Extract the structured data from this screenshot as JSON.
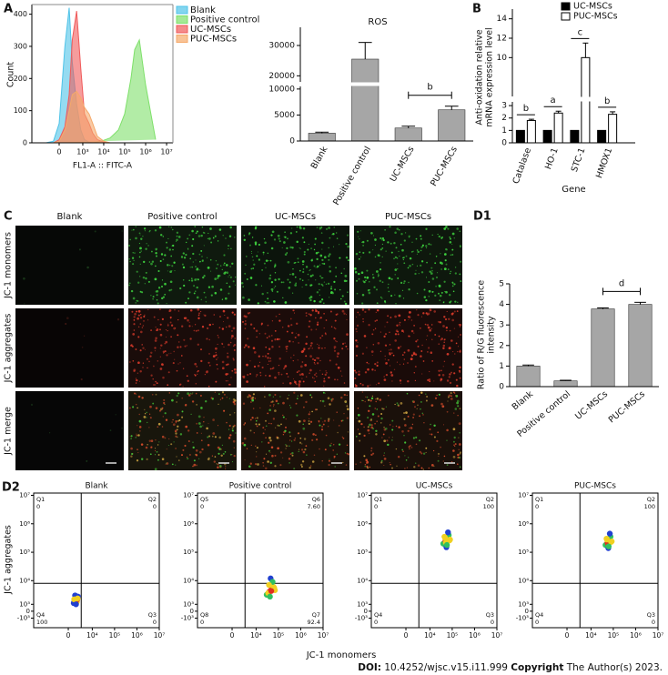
{
  "panel_labels": [
    "A",
    "B",
    "C",
    "D1",
    "D2"
  ],
  "chart_data": [
    {
      "type": "area",
      "xlabel": "FL1-A :: FITC-A",
      "ylabel": "Count",
      "xscale": "asinh",
      "x": [
        -300,
        -100,
        0,
        100,
        200,
        300,
        500,
        800,
        1200,
        2000,
        3000,
        5000,
        10000,
        20000,
        50000,
        100000,
        200000,
        300000,
        500000,
        1000000,
        3000000
      ],
      "series": [
        {
          "name": "Blank",
          "color": "#4fc3e8",
          "values": [
            0,
            5,
            60,
            300,
            420,
            250,
            120,
            40,
            10,
            2,
            0,
            0,
            0,
            0,
            0,
            0,
            0,
            0,
            0,
            0,
            0
          ]
        },
        {
          "name": "Positive control",
          "color": "#7ee06a",
          "values": [
            0,
            0,
            0,
            0,
            0,
            0,
            0,
            0,
            0,
            0,
            0,
            2,
            8,
            15,
            40,
            90,
            200,
            290,
            320,
            180,
            10
          ]
        },
        {
          "name": "UC-MSCs",
          "color": "#f05a5a",
          "values": [
            0,
            0,
            10,
            50,
            150,
            320,
            410,
            230,
            90,
            60,
            30,
            10,
            2,
            0,
            0,
            0,
            0,
            0,
            0,
            0,
            0
          ]
        },
        {
          "name": "PUC-MSCs",
          "color": "#f5a96a",
          "values": [
            0,
            0,
            5,
            40,
            100,
            150,
            160,
            140,
            110,
            90,
            60,
            20,
            5,
            0,
            0,
            0,
            0,
            0,
            0,
            0,
            0
          ]
        }
      ],
      "xlim": [
        -1500,
        20000000
      ],
      "xticks": [
        0,
        {
          "value": 1000,
          "label": "10³"
        },
        {
          "value": 10000,
          "label": "10⁴"
        },
        {
          "value": 100000,
          "label": "10⁵"
        },
        {
          "value": 1000000,
          "label": "10⁶"
        },
        {
          "value": 10000000,
          "label": "10⁷"
        }
      ],
      "ylim": [
        0,
        430
      ],
      "yticks": [
        0,
        100,
        200,
        300,
        400
      ],
      "legend": "right"
    },
    {
      "type": "bar",
      "title": "ROS",
      "categories": [
        "Blank",
        "Positive control",
        "UC-MSCs",
        "PUC-MSCs"
      ],
      "values": [
        1500,
        25500,
        2500,
        6000
      ],
      "errors": [
        200,
        5500,
        350,
        700
      ],
      "color": "#a6a6a6",
      "ylim": [
        0,
        36000
      ],
      "ybreak": [
        10500,
        18000
      ],
      "yticks": [
        0,
        5000,
        10000,
        20000,
        30000
      ],
      "annotations": [
        {
          "text": "b",
          "between": [
            2,
            3
          ]
        }
      ]
    },
    {
      "type": "grouped-bar",
      "categories": [
        "Catalase",
        "HO-1",
        "STC-1",
        "HMOX1"
      ],
      "ylabel": [
        "Anti-oxidation relative",
        "mRNA expression level"
      ],
      "xlabel": "Gene",
      "series": [
        {
          "name": "UC-MSCs",
          "color": "#000000",
          "values": [
            1,
            1,
            1,
            1
          ]
        },
        {
          "name": "PUC-MSCs",
          "color": "#ffffff",
          "values": [
            1.8,
            2.4,
            10,
            2.3
          ],
          "errors": [
            0.1,
            0.15,
            1.5,
            0.2
          ]
        }
      ],
      "letters": [
        "b",
        "a",
        "c",
        "b"
      ],
      "ylim": [
        0,
        15
      ],
      "ybreak": [
        3.3,
        6
      ],
      "yticks": [
        0,
        1,
        2,
        3,
        10,
        12,
        14
      ],
      "legend": "top-right"
    },
    {
      "type": "bar",
      "categories": [
        "Blank",
        "Positive control",
        "UC-MSCs",
        "PUC-MSCs"
      ],
      "ylabel": [
        "Ratio of R/G fluorescence",
        "intensity"
      ],
      "values": [
        1.0,
        0.28,
        3.78,
        4.0
      ],
      "errors": [
        0.05,
        0.03,
        0.05,
        0.1
      ],
      "color": "#a6a6a6",
      "ylim": [
        0,
        5
      ],
      "yticks": [
        0,
        1,
        2,
        3,
        4,
        5
      ],
      "annotations": [
        {
          "text": "d",
          "between": [
            2,
            3
          ]
        }
      ]
    },
    {
      "type": "scatter",
      "title": "Blank",
      "ylabel": "JC-1 aggregates",
      "xscale": "asinh",
      "yscale": "asinh",
      "x": [
        1200,
        1500,
        1800,
        1000,
        2000,
        1400,
        1700,
        1300,
        1600,
        1100,
        1900,
        1500
      ],
      "y": [
        1500,
        2000,
        1800,
        1200,
        2500,
        2200,
        1400,
        2800,
        1700,
        1900,
        2100,
        1000
      ],
      "gate": {
        "x": 3000,
        "y": 8000
      },
      "quadrants": [
        {
          "name": "Q1",
          "value": "0"
        },
        {
          "name": "Q2",
          "value": "0"
        },
        {
          "name": "Q3",
          "value": "0"
        },
        {
          "name": "Q4",
          "value": "100"
        }
      ],
      "xlim": [
        -30000,
        10000000
      ],
      "ylim": [
        -3000,
        12000000
      ],
      "xticks": [
        0,
        {
          "value": 10000,
          "label": "10⁴"
        },
        {
          "value": 100000,
          "label": "10⁵"
        },
        {
          "value": 1000000,
          "label": "10⁶"
        },
        {
          "value": 10000000,
          "label": "10⁷"
        }
      ],
      "yticks": [
        {
          "value": -1000,
          "label": "-10³"
        },
        0,
        {
          "value": 1000,
          "label": "10³"
        },
        {
          "value": 10000,
          "label": "10⁴"
        },
        {
          "value": 100000,
          "label": "10⁵"
        },
        {
          "value": 1000000,
          "label": "10⁶"
        },
        {
          "value": 10000000,
          "label": "10⁷"
        }
      ]
    },
    {
      "type": "scatter",
      "title": "Positive control",
      "xscale": "asinh",
      "yscale": "asinh",
      "x": [
        30000,
        50000,
        40000,
        60000,
        45000,
        35000,
        70000,
        55000,
        42000,
        38000,
        65000,
        48000
      ],
      "y": [
        3000,
        5000,
        4000,
        6000,
        12000,
        3500,
        4500,
        9000,
        2500,
        7000,
        5500,
        4200
      ],
      "gate": {
        "x": 3000,
        "y": 8000
      },
      "quadrants": [
        {
          "name": "Q5",
          "value": "0"
        },
        {
          "name": "Q6",
          "value": "7.60"
        },
        {
          "name": "Q7",
          "value": "92.4"
        },
        {
          "name": "Q8",
          "value": "0"
        }
      ],
      "xlim": [
        -30000,
        10000000
      ],
      "ylim": [
        -3000,
        12000000
      ],
      "xticks": [
        0,
        {
          "value": 10000,
          "label": "10⁴"
        },
        {
          "value": 100000,
          "label": "10⁵"
        },
        {
          "value": 1000000,
          "label": "10⁶"
        },
        {
          "value": 10000000,
          "label": "10⁷"
        }
      ],
      "yticks": [
        {
          "value": -1000,
          "label": "-10³"
        },
        0,
        {
          "value": 1000,
          "label": "10³"
        },
        {
          "value": 10000,
          "label": "10⁴"
        },
        {
          "value": 100000,
          "label": "10⁵"
        },
        {
          "value": 1000000,
          "label": "10⁶"
        },
        {
          "value": 10000000,
          "label": "10⁷"
        }
      ]
    },
    {
      "type": "scatter",
      "title": "UC-MSCs",
      "xscale": "asinh",
      "yscale": "asinh",
      "x": [
        40000,
        60000,
        50000,
        70000,
        55000,
        45000,
        80000,
        65000,
        52000,
        48000,
        75000,
        58000
      ],
      "y": [
        200000,
        300000,
        250000,
        400000,
        150000,
        350000,
        280000,
        500000,
        220000,
        320000,
        260000,
        180000
      ],
      "gate": {
        "x": 3000,
        "y": 8000
      },
      "quadrants": [
        {
          "name": "Q1",
          "value": "0"
        },
        {
          "name": "Q2",
          "value": "100"
        },
        {
          "name": "Q3",
          "value": "0"
        },
        {
          "name": "Q4",
          "value": "0"
        }
      ],
      "xlim": [
        -30000,
        10000000
      ],
      "ylim": [
        -3000,
        12000000
      ],
      "xticks": [
        0,
        {
          "value": 10000,
          "label": "10⁴"
        },
        {
          "value": 100000,
          "label": "10⁵"
        },
        {
          "value": 1000000,
          "label": "10⁶"
        },
        {
          "value": 10000000,
          "label": "10⁷"
        }
      ],
      "yticks": [
        {
          "value": -1000,
          "label": "-10³"
        },
        0,
        {
          "value": 1000,
          "label": "10³"
        },
        {
          "value": 10000,
          "label": "10⁴"
        },
        {
          "value": 100000,
          "label": "10⁵"
        },
        {
          "value": 1000000,
          "label": "10⁶"
        },
        {
          "value": 10000000,
          "label": "10⁷"
        }
      ]
    },
    {
      "type": "scatter",
      "title": "PUC-MSCs",
      "xscale": "asinh",
      "yscale": "asinh",
      "x": [
        45000,
        65000,
        55000,
        75000,
        60000,
        50000,
        85000,
        70000,
        58000,
        52000,
        80000,
        62000
      ],
      "y": [
        180000,
        260000,
        220000,
        350000,
        140000,
        300000,
        240000,
        450000,
        200000,
        280000,
        230000,
        160000
      ],
      "gate": {
        "x": 3000,
        "y": 8000
      },
      "quadrants": [
        {
          "name": "Q1",
          "value": "0"
        },
        {
          "name": "Q2",
          "value": "100"
        },
        {
          "name": "Q3",
          "value": "0"
        },
        {
          "name": "Q4",
          "value": "0"
        }
      ],
      "xlim": [
        -30000,
        10000000
      ],
      "ylim": [
        -3000,
        12000000
      ],
      "xticks": [
        0,
        {
          "value": 10000,
          "label": "10⁴"
        },
        {
          "value": 100000,
          "label": "10⁵"
        },
        {
          "value": 1000000,
          "label": "10⁶"
        },
        {
          "value": 10000000,
          "label": "10⁷"
        }
      ],
      "yticks": [
        {
          "value": -1000,
          "label": "-10³"
        },
        0,
        {
          "value": 1000,
          "label": "10³"
        },
        {
          "value": 10000,
          "label": "10⁴"
        },
        {
          "value": 100000,
          "label": "10⁵"
        },
        {
          "value": 1000000,
          "label": "10⁶"
        },
        {
          "value": 10000000,
          "label": "10⁷"
        }
      ]
    }
  ],
  "micrographs": {
    "columns": [
      "Blank",
      "Positive control",
      "UC-MSCs",
      "PUC-MSCs"
    ],
    "rows": [
      "JC-1 monomers",
      "JC-1 aggregates",
      "JC-1 merge"
    ]
  },
  "figure": {
    "d2_xlabel": "JC-1 monomers"
  },
  "footer": {
    "doi_label": "DOI:",
    "doi": "10.4252/wjsc.v15.i11.999",
    "copyright_label": "Copyright",
    "copyright": "The Author(s) 2023."
  }
}
